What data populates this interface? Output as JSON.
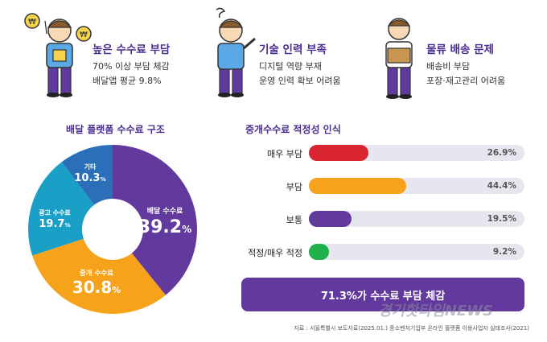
{
  "highlights": [
    {
      "title": "높은 수수료 부담",
      "line1": "70% 이상 부담 체감",
      "line2": "배달앱 평균 9.8%"
    },
    {
      "title": "기술 인력 부족",
      "line1": "디지털 역량 부재",
      "line2": "운영 인력 확보 어려움"
    },
    {
      "title": "물류 배송 문제",
      "line1": "배송비 부담",
      "line2": "포장·재고관리 어려움"
    }
  ],
  "chart_data": [
    {
      "type": "pie",
      "title": "배달 플랫폼 수수료 구조",
      "categories": [
        "배달 수수료",
        "중개 수수료",
        "광고 수수료",
        "기타"
      ],
      "values": [
        39.2,
        30.8,
        19.7,
        10.3
      ],
      "colors": [
        "#62399c",
        "#f7a21b",
        "#1a9fc6",
        "#2a6fb8"
      ],
      "unit": "%"
    },
    {
      "type": "bar",
      "title": "중개수수료 적정성 인식",
      "categories": [
        "매우 부담",
        "부담",
        "보통",
        "적정/매우 적정"
      ],
      "values": [
        26.9,
        44.4,
        19.5,
        9.2
      ],
      "colors": [
        "#d9252f",
        "#f7a21b",
        "#62399c",
        "#1fb24a"
      ],
      "track_color": "#e7e6ef",
      "ylim": [
        0,
        100
      ],
      "unit": "%"
    }
  ],
  "summary": "71.3%가 수수료 부담 체감",
  "source": "자료 : 서울특별시 보도자료(2025.01.) 중소벤처기업부 온라인 플랫폼 이용사업자 실태조사(2021)",
  "watermark": "경기핫타임NEWS"
}
